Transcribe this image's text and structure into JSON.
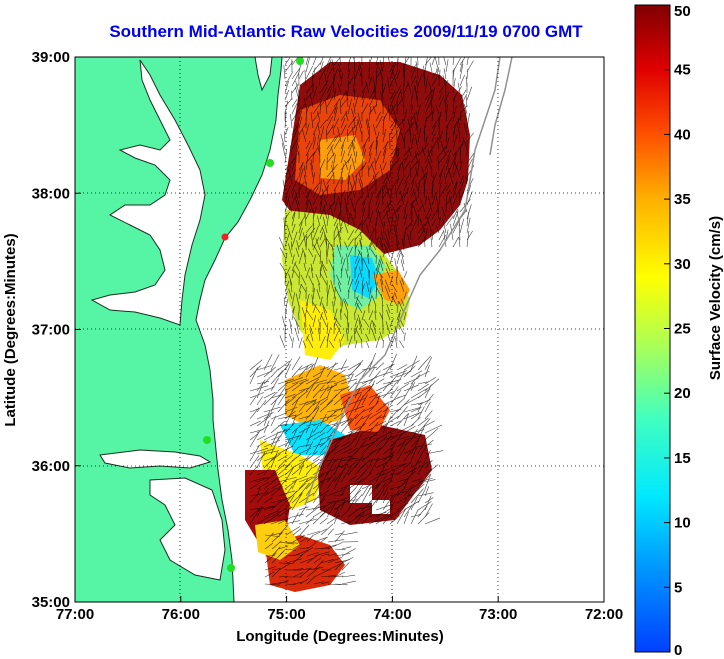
{
  "map": {
    "title": "Southern Mid-Atlantic Raw Velocities 2009/11/19 0700 GMT",
    "xlabel": "Longitude (Degrees:Minutes)",
    "ylabel": "Latitude (Degrees:Minutes)",
    "x_ticks": [
      "77:00",
      "76:00",
      "75:00",
      "74:00",
      "73:00",
      "72:00"
    ],
    "y_ticks": [
      "39:00",
      "38:00",
      "37:00",
      "36:00",
      "35:00"
    ],
    "lon_range": [
      -77,
      -72
    ],
    "lat_range": [
      35,
      39
    ],
    "grid": true,
    "land_color": "#55f5a5",
    "water_color": "#ffffff",
    "title_color": "#0000ee",
    "site_color": "#22dd22",
    "highlight_site_color": "#ee2222"
  },
  "colorbar": {
    "label": "Surface Velocity (cm/s)",
    "ticks": [
      "50",
      "45",
      "40",
      "35",
      "30",
      "25",
      "20",
      "15",
      "10",
      "5",
      "0"
    ],
    "range": [
      0,
      50
    ],
    "colormap": "jet"
  }
}
